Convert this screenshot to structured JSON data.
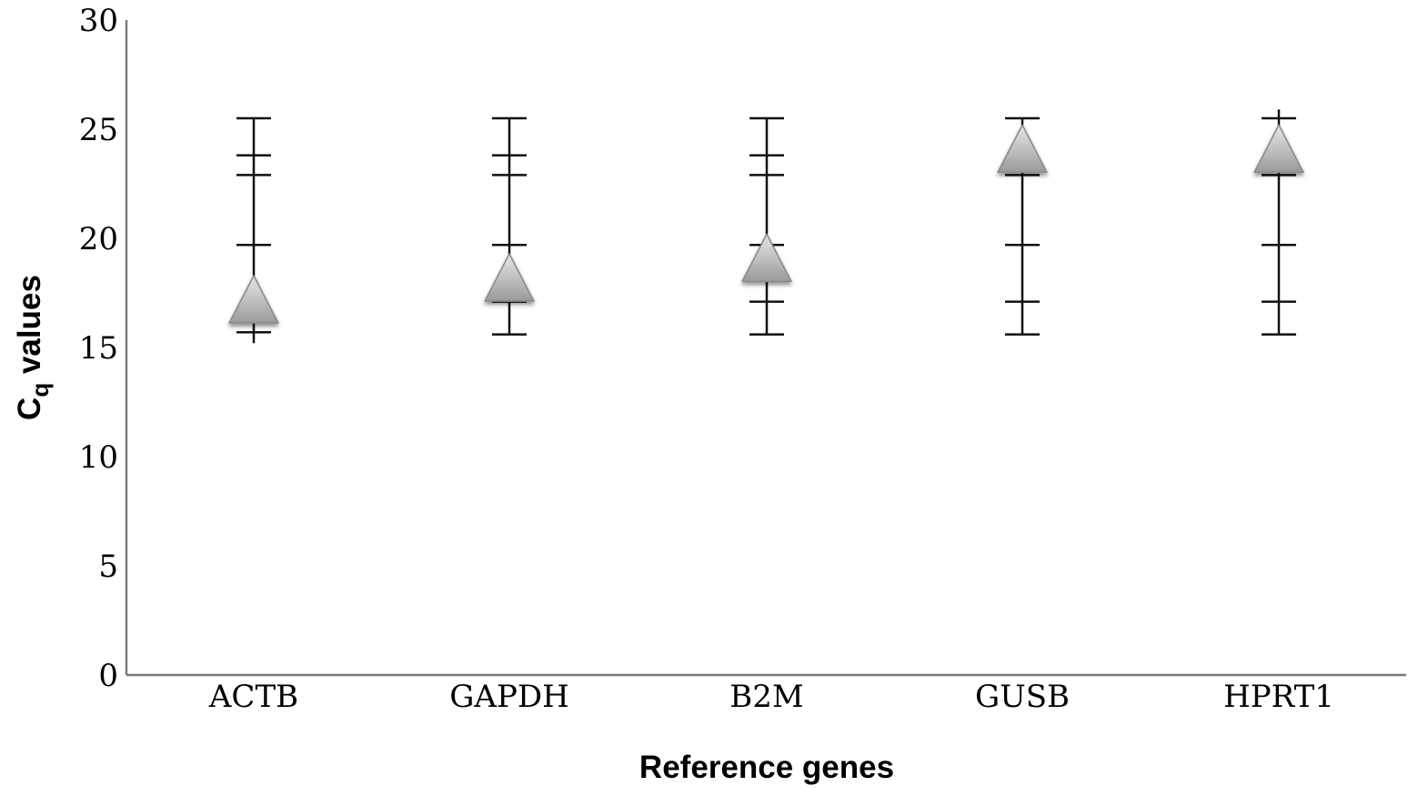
{
  "chart_data": {
    "type": "scatter",
    "title": "",
    "xlabel": "Reference genes",
    "ylabel": {
      "main": "C",
      "sub": "q",
      "rest": " values"
    },
    "ylim": [
      0,
      30
    ],
    "yticks": [
      0,
      5,
      10,
      15,
      20,
      25,
      30
    ],
    "categories": [
      "ACTB",
      "GAPDH",
      "B2M",
      "GUSB",
      "HPRT1"
    ],
    "marker": "triangle",
    "marker_color": "#b8b8b8",
    "grid": false,
    "legend": "none",
    "points": [
      {
        "category": "ACTB",
        "value": 17.1,
        "min": 15.2,
        "max": 25.5,
        "ticks": [
          15.7,
          19.7,
          22.9,
          23.8,
          25.5
        ]
      },
      {
        "category": "GAPDH",
        "value": 18.1,
        "min": 15.6,
        "max": 25.5,
        "ticks": [
          15.6,
          17.1,
          19.7,
          22.9,
          23.8,
          25.5
        ]
      },
      {
        "category": "B2M",
        "value": 19.0,
        "min": 15.6,
        "max": 25.5,
        "ticks": [
          15.6,
          17.1,
          19.7,
          22.9,
          23.8,
          25.5
        ]
      },
      {
        "category": "GUSB",
        "value": 24.0,
        "min": 15.6,
        "max": 25.5,
        "ticks": [
          15.6,
          17.1,
          19.7,
          22.9,
          25.5
        ]
      },
      {
        "category": "HPRT1",
        "value": 24.0,
        "min": 15.6,
        "max": 25.9,
        "ticks": [
          15.6,
          17.1,
          19.7,
          22.9,
          25.5
        ]
      }
    ]
  }
}
